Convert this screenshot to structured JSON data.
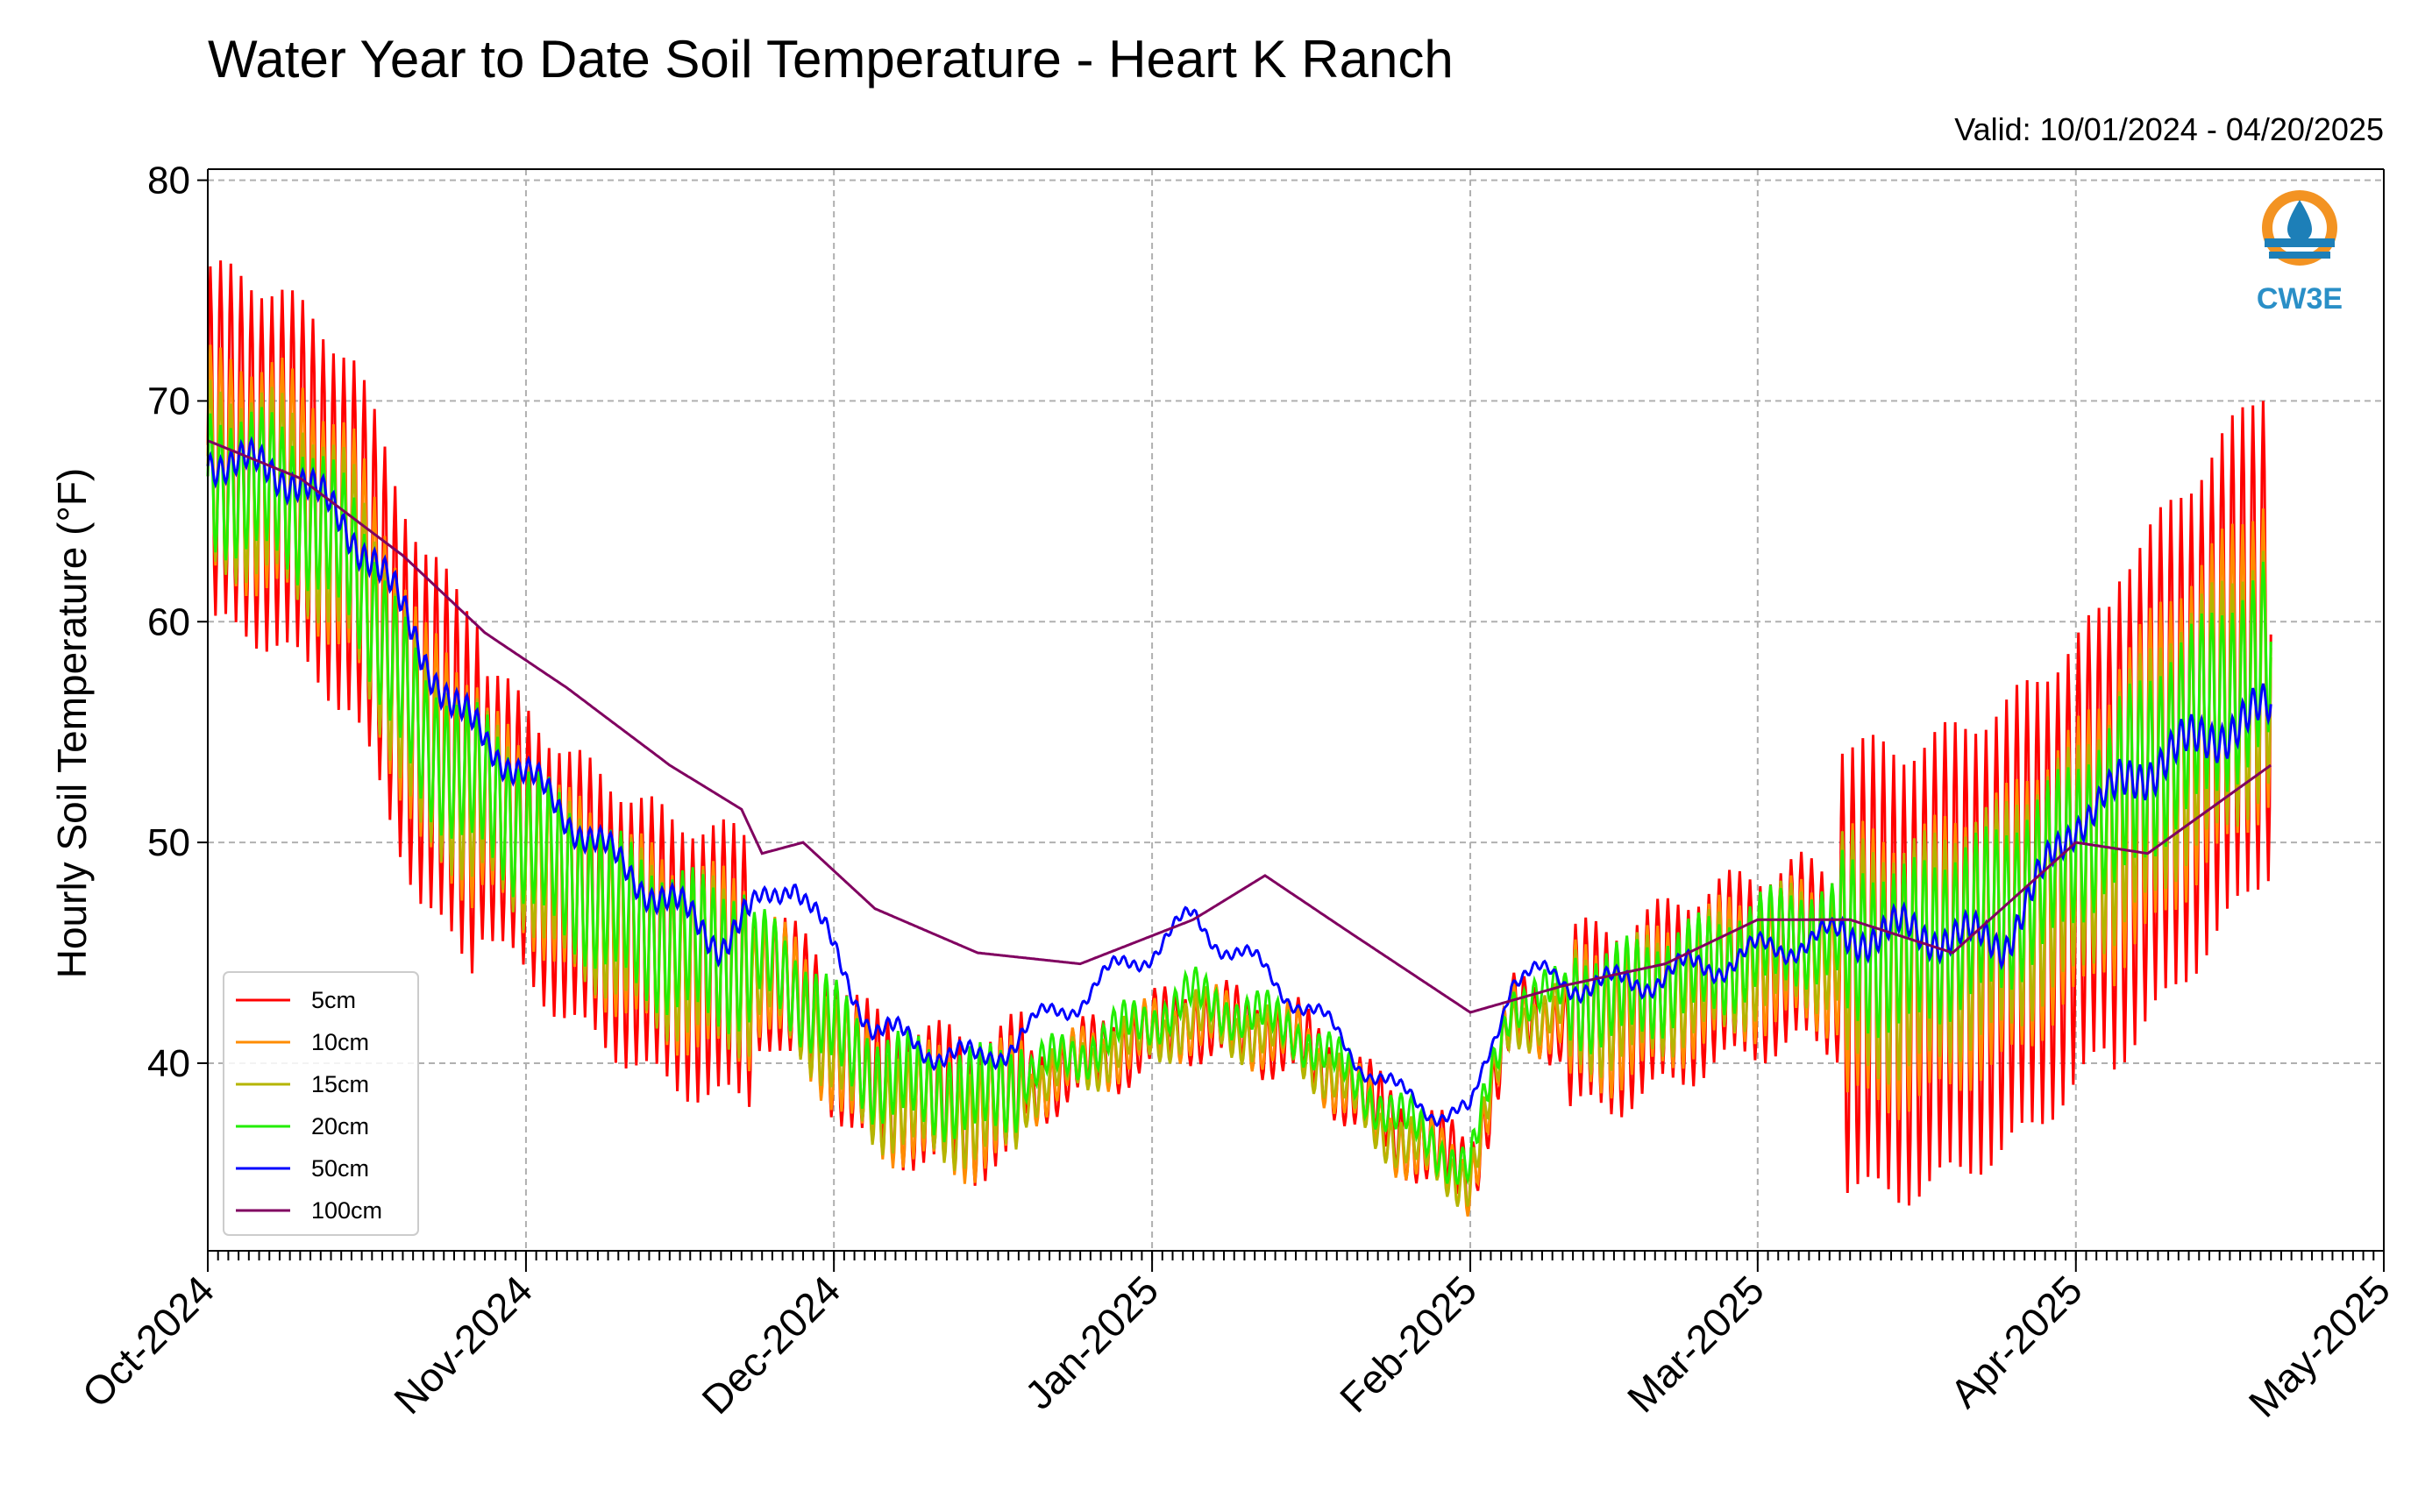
{
  "chart_data": {
    "type": "line",
    "title": "Water Year to Date Soil Temperature - Heart K Ranch",
    "subtitle": "Valid: 10/01/2024 - 04/20/2025",
    "ylabel": "Hourly Soil Temperature (°F)",
    "xlabel": "",
    "ylim": [
      31.5,
      80.5
    ],
    "yticks": [
      40,
      50,
      60,
      70,
      80
    ],
    "xlim": [
      "2024-10-01",
      "2025-05-01"
    ],
    "xtick_labels": [
      "Oct-2024",
      "Nov-2024",
      "Dec-2024",
      "Jan-2025",
      "Feb-2025",
      "Mar-2025",
      "Apr-2025",
      "May-2025"
    ],
    "xtick_dates": [
      "2024-10-01",
      "2024-11-01",
      "2024-12-01",
      "2025-01-01",
      "2025-02-01",
      "2025-03-01",
      "2025-04-01",
      "2025-05-01"
    ],
    "grid": true,
    "legend_position": "lower-left",
    "series": [
      {
        "name": "5cm",
        "color": "#ff0000",
        "diurnal_amplitude": [
          8,
          6,
          3,
          1.5,
          1.5,
          4,
          10,
          11
        ],
        "x": [
          "2024-10-01",
          "2024-10-08",
          "2024-10-15",
          "2024-10-22",
          "2024-10-28",
          "2024-11-05",
          "2024-11-15",
          "2024-11-25",
          "2024-12-05",
          "2024-12-15",
          "2024-12-25",
          "2025-01-05",
          "2025-01-15",
          "2025-01-25",
          "2025-02-01",
          "2025-02-05",
          "2025-02-15",
          "2025-02-25",
          "2025-03-05",
          "2025-03-15",
          "2025-03-25",
          "2025-04-01",
          "2025-04-10",
          "2025-04-20"
        ],
        "y": [
          68,
          67,
          64,
          55,
          52,
          48,
          45,
          44,
          39,
          38,
          40,
          42,
          41,
          37,
          35,
          42,
          42,
          44,
          45,
          44,
          46,
          49,
          54,
          60
        ]
      },
      {
        "name": "10cm",
        "color": "#ff8c00",
        "diurnal_amplitude": [
          5,
          4,
          2.5,
          1.2,
          1.2,
          3,
          6,
          7
        ],
        "x": [
          "2024-10-01",
          "2024-10-08",
          "2024-10-15",
          "2024-10-22",
          "2024-10-28",
          "2024-11-05",
          "2024-11-15",
          "2024-11-25",
          "2024-12-05",
          "2024-12-15",
          "2024-12-25",
          "2025-01-05",
          "2025-01-15",
          "2025-01-25",
          "2025-02-01",
          "2025-02-05",
          "2025-02-15",
          "2025-02-25",
          "2025-03-05",
          "2025-03-15",
          "2025-03-25",
          "2025-04-01",
          "2025-04-10",
          "2025-04-20"
        ],
        "y": [
          67,
          66.5,
          63.5,
          54.5,
          52,
          48,
          45,
          44,
          38.5,
          37.5,
          40,
          42,
          41,
          36.5,
          34.8,
          42,
          42,
          44,
          45,
          44,
          46,
          49,
          54,
          59
        ]
      },
      {
        "name": "15cm",
        "color": "#b5b500",
        "diurnal_amplitude": [
          4,
          3.5,
          2,
          1,
          1,
          2.5,
          5,
          5.5
        ],
        "x": [
          "2024-10-01",
          "2024-10-08",
          "2024-10-15",
          "2024-10-22",
          "2024-10-28",
          "2024-11-05",
          "2024-11-15",
          "2024-11-25",
          "2024-12-05",
          "2024-12-15",
          "2024-12-25",
          "2025-01-05",
          "2025-01-15",
          "2025-01-25",
          "2025-02-01",
          "2025-02-05",
          "2025-02-15",
          "2025-02-25",
          "2025-03-05",
          "2025-03-15",
          "2025-03-25",
          "2025-04-01",
          "2025-04-10",
          "2025-04-20"
        ],
        "y": [
          66.5,
          66,
          63,
          54,
          52,
          48,
          45,
          44,
          38.5,
          37.5,
          40,
          42,
          41,
          36.5,
          34.8,
          42,
          42.5,
          44,
          45.5,
          44.5,
          46.5,
          49,
          54,
          58
        ]
      },
      {
        "name": "20cm",
        "color": "#22ee00",
        "diurnal_amplitude": [
          3,
          3,
          1.8,
          0.8,
          0.8,
          2,
          3.5,
          4
        ],
        "x": [
          "2024-10-01",
          "2024-10-08",
          "2024-10-15",
          "2024-10-22",
          "2024-10-28",
          "2024-11-05",
          "2024-11-15",
          "2024-11-25",
          "2024-12-05",
          "2024-12-15",
          "2024-12-25",
          "2025-01-05",
          "2025-01-15",
          "2025-01-25",
          "2025-02-01",
          "2025-02-05",
          "2025-02-15",
          "2025-02-25",
          "2025-03-05",
          "2025-03-15",
          "2025-03-25",
          "2025-04-01",
          "2025-04-10",
          "2025-04-20"
        ],
        "y": [
          66.5,
          66,
          63,
          54.5,
          52.5,
          48.5,
          45.5,
          44.5,
          39.5,
          38.5,
          40.5,
          43,
          41.5,
          37.5,
          35.2,
          43,
          43,
          44.5,
          46,
          45,
          47,
          50,
          54.5,
          58.5
        ]
      },
      {
        "name": "50cm",
        "color": "#0000ff",
        "diurnal_amplitude": [
          0.6,
          0.5,
          0.3,
          0.2,
          0.2,
          0.3,
          0.6,
          0.8
        ],
        "x": [
          "2024-10-01",
          "2024-10-10",
          "2024-10-17",
          "2024-10-25",
          "2024-11-01",
          "2024-11-10",
          "2024-11-20",
          "2024-11-27",
          "2024-12-05",
          "2024-12-15",
          "2024-12-25",
          "2025-01-05",
          "2025-01-15",
          "2025-01-25",
          "2025-02-01",
          "2025-02-05",
          "2025-02-15",
          "2025-02-25",
          "2025-03-05",
          "2025-03-15",
          "2025-03-25",
          "2025-04-01",
          "2025-04-10",
          "2025-04-20"
        ],
        "y": [
          67.5,
          66.5,
          63,
          56,
          53,
          49,
          45.5,
          48.5,
          41.5,
          40,
          43,
          46.5,
          43,
          38.5,
          37.5,
          44,
          43.5,
          44.5,
          45.5,
          46,
          45.5,
          51,
          54,
          56
        ]
      },
      {
        "name": "100cm",
        "color": "#800060",
        "diurnal_amplitude": [
          0,
          0,
          0,
          0,
          0,
          0,
          0,
          0
        ],
        "x": [
          "2024-10-01",
          "2024-10-10",
          "2024-10-20",
          "2024-10-28",
          "2024-11-05",
          "2024-11-15",
          "2024-11-22",
          "2024-11-24",
          "2024-11-28",
          "2024-12-05",
          "2024-12-15",
          "2024-12-25",
          "2025-01-05",
          "2025-01-12",
          "2025-01-20",
          "2025-02-01",
          "2025-02-10",
          "2025-02-20",
          "2025-03-01",
          "2025-03-10",
          "2025-03-20",
          "2025-04-01",
          "2025-04-08",
          "2025-04-20"
        ],
        "y": [
          68.2,
          66.5,
          63,
          59.5,
          57,
          53.5,
          51.5,
          49.5,
          50,
          47,
          45,
          44.5,
          46.5,
          48.5,
          46,
          42.3,
          43.5,
          44.5,
          46.5,
          46.5,
          45,
          50,
          49.5,
          53.5
        ]
      }
    ]
  }
}
